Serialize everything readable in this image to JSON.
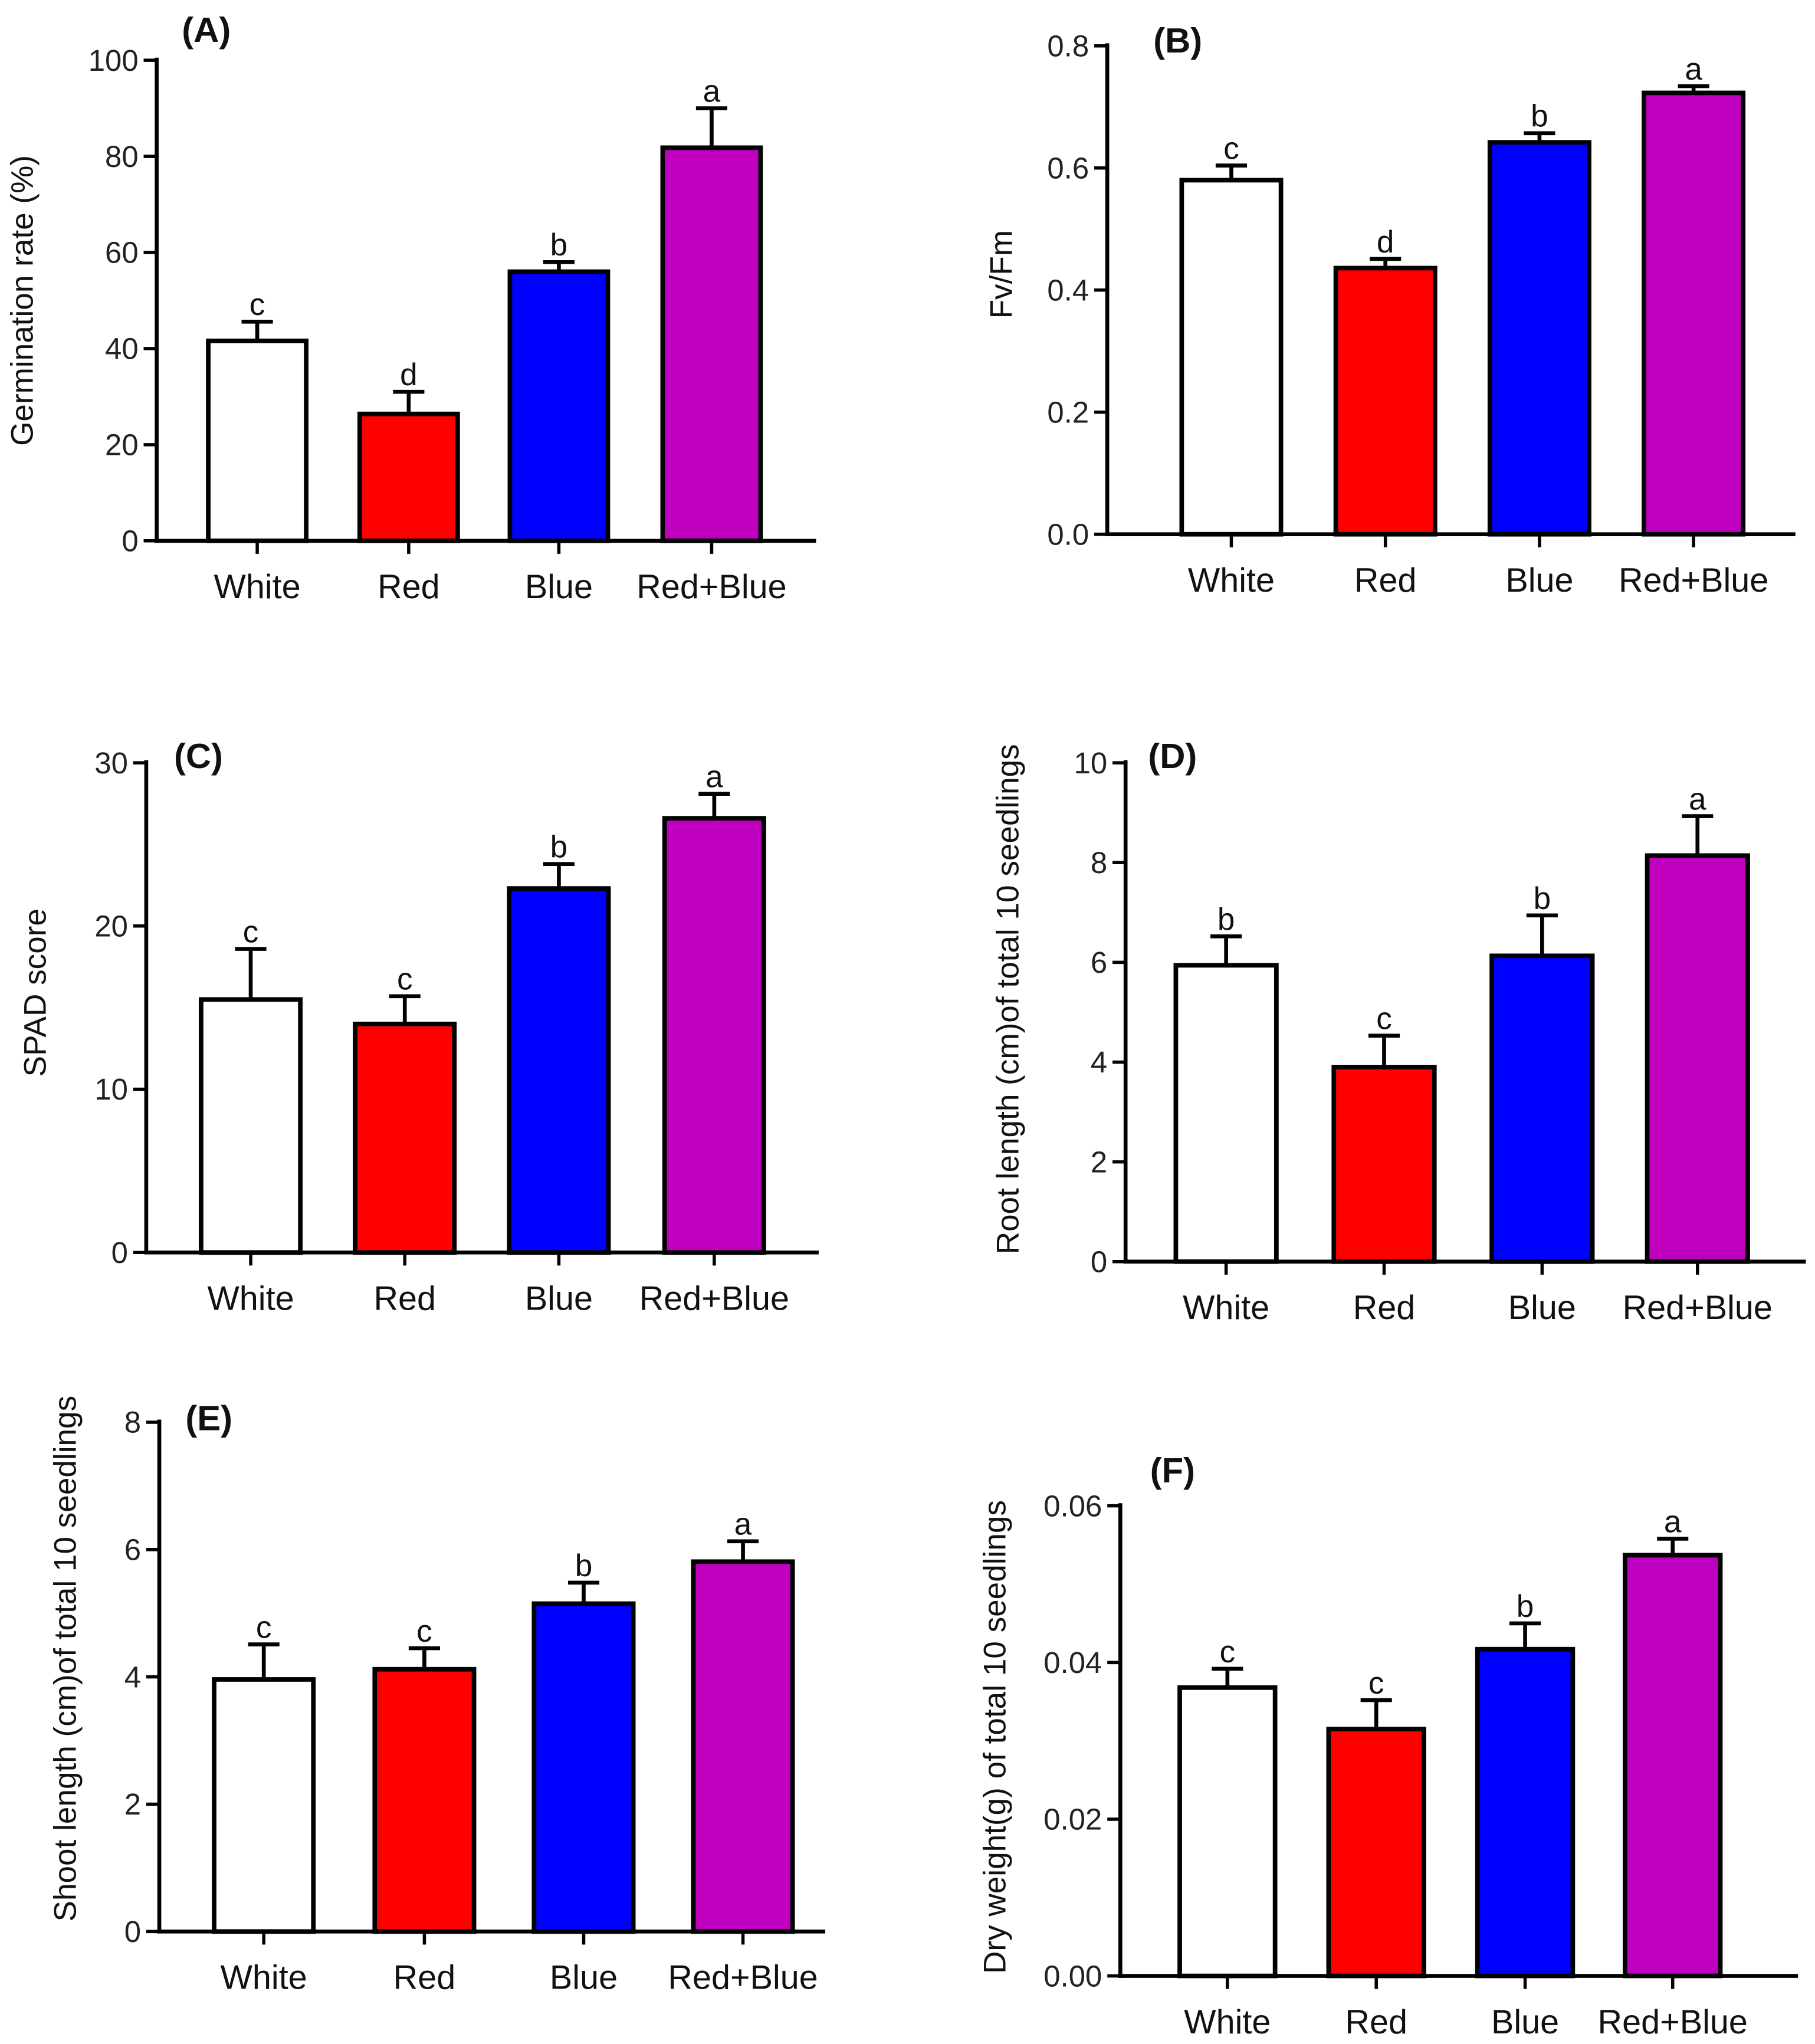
{
  "colors": {
    "White": "#ffffff",
    "Red": "#ff0000",
    "Blue": "#0000ff",
    "Red+Blue": "#bf00bf"
  },
  "chart_data": [
    {
      "type": "bar",
      "title": "(A)",
      "xlabel": "",
      "ylabel": "Germination rate (%)",
      "categories": [
        "White",
        "Red",
        "Blue",
        "Red+Blue"
      ],
      "values": [
        41.6,
        26.4,
        56,
        81.8
      ],
      "errors": [
        4,
        4.6,
        2,
        8.2
      ],
      "letters": [
        "c",
        "d",
        "b",
        "a"
      ],
      "ylim": [
        0,
        100
      ],
      "yticks": [
        "0",
        "20",
        "40",
        "60",
        "80",
        "100"
      ]
    },
    {
      "type": "bar",
      "title": "(B)",
      "xlabel": "",
      "ylabel": "Fv/Fm",
      "categories": [
        "White",
        "Red",
        "Blue",
        "Red+Blue"
      ],
      "values": [
        0.58,
        0.436,
        0.642,
        0.723
      ],
      "errors": [
        0.024,
        0.015,
        0.015,
        0.011
      ],
      "letters": [
        "c",
        "d",
        "b",
        "a"
      ],
      "ylim": [
        0,
        0.8
      ],
      "yticks": [
        "0.0",
        "0.2",
        "0.4",
        "0.6",
        "0.8"
      ]
    },
    {
      "type": "bar",
      "title": "(C)",
      "xlabel": "",
      "ylabel": "SPAD score",
      "categories": [
        "White",
        "Red",
        "Blue",
        "Red+Blue"
      ],
      "values": [
        15.5,
        14,
        22.3,
        26.6
      ],
      "errors": [
        3.1,
        1.7,
        1.5,
        1.5
      ],
      "letters": [
        "c",
        "c",
        "b",
        "a"
      ],
      "ylim": [
        0,
        30
      ],
      "yticks": [
        "0",
        "10",
        "20",
        "30"
      ]
    },
    {
      "type": "bar",
      "title": "(D)",
      "xlabel": "",
      "ylabel": "Root length (cm)of total 10 seedlings",
      "categories": [
        "White",
        "Red",
        "Blue",
        "Red+Blue"
      ],
      "values": [
        5.94,
        3.9,
        6.13,
        8.14
      ],
      "errors": [
        0.58,
        0.63,
        0.81,
        0.79
      ],
      "letters": [
        "b",
        "c",
        "b",
        "a"
      ],
      "ylim": [
        0,
        10
      ],
      "yticks": [
        "0",
        "2",
        "4",
        "6",
        "8",
        "10"
      ]
    },
    {
      "type": "bar",
      "title": "(E)",
      "xlabel": "",
      "ylabel": "Shoot length (cm)of total 10 seedlings",
      "categories": [
        "White",
        "Red",
        "Blue",
        "Red+Blue"
      ],
      "values": [
        3.96,
        4.12,
        5.15,
        5.81
      ],
      "errors": [
        0.55,
        0.33,
        0.33,
        0.32
      ],
      "letters": [
        "c",
        "c",
        "b",
        "a"
      ],
      "ylim": [
        0,
        8
      ],
      "yticks": [
        "0",
        "2",
        "4",
        "6",
        "8"
      ]
    },
    {
      "type": "bar",
      "title": "(F)",
      "xlabel": "",
      "ylabel": "Dry weight(g) of total 10 seedlings",
      "categories": [
        "White",
        "Red",
        "Blue",
        "Red+Blue"
      ],
      "values": [
        0.0368,
        0.0315,
        0.0417,
        0.0537
      ],
      "errors": [
        0.0024,
        0.0037,
        0.0033,
        0.0021
      ],
      "letters": [
        "c",
        "c",
        "b",
        "a"
      ],
      "ylim": [
        0,
        0.06
      ],
      "yticks": [
        "0.00",
        "0.02",
        "0.04",
        "0.06"
      ]
    }
  ]
}
